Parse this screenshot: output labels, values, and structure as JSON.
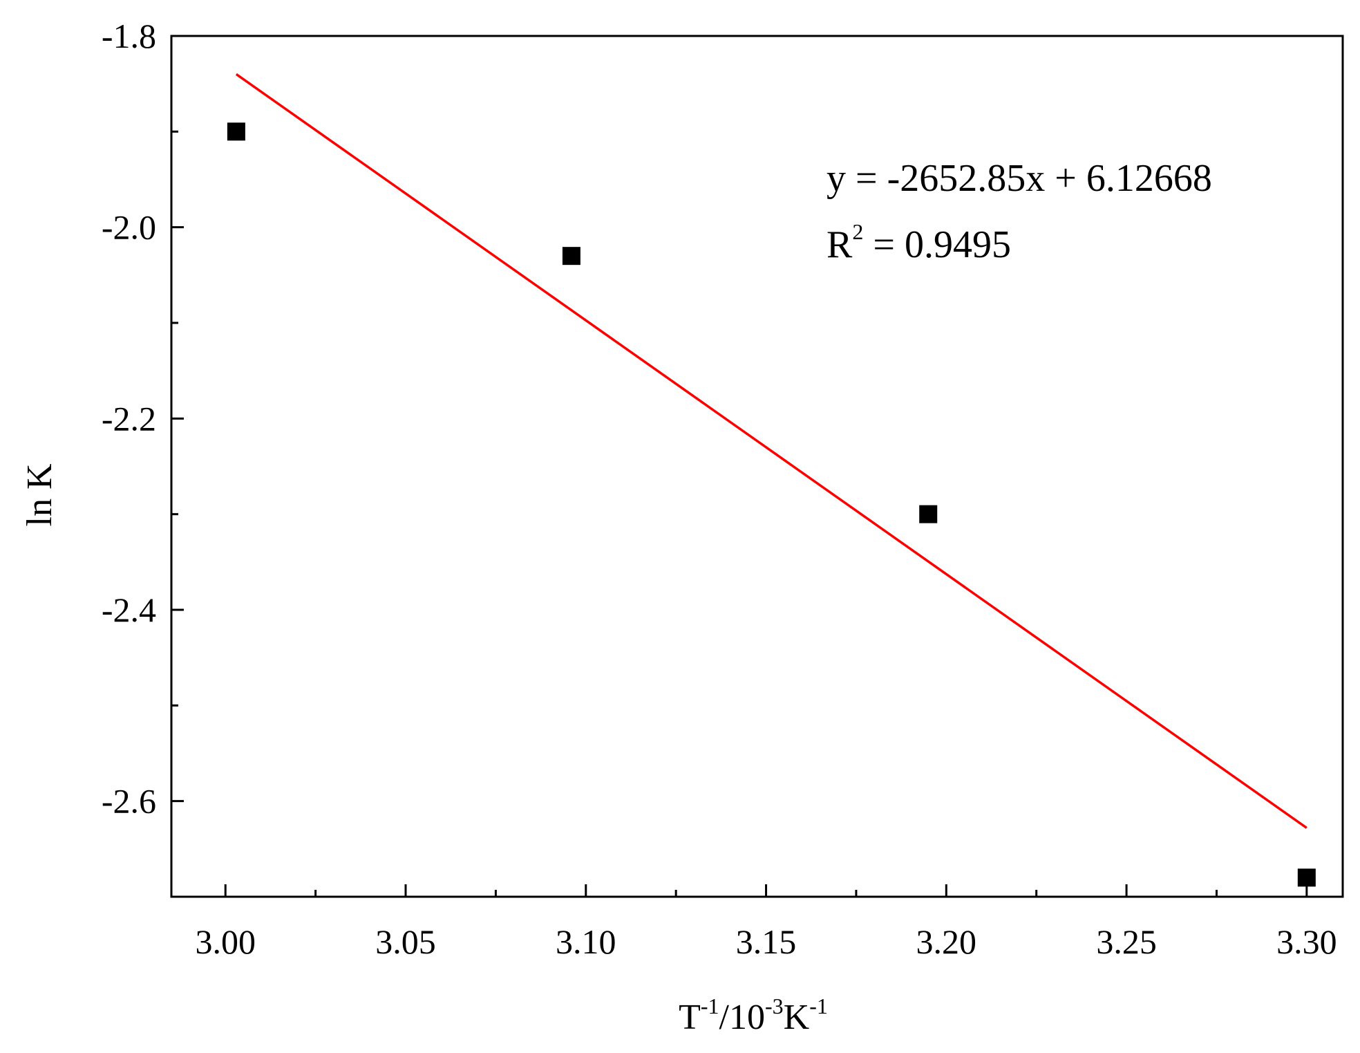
{
  "chart_data": {
    "type": "scatter",
    "title": "",
    "xlabel": {
      "base": "T",
      "exp1": "-1",
      "mid": "/10",
      "exp2": "-3",
      "unit": "K",
      "exp3": "-1"
    },
    "ylabel": "ln K",
    "xlim": [
      2.985,
      3.31
    ],
    "ylim": [
      -2.7,
      -1.8
    ],
    "x_ticks_major": [
      "3.00",
      "3.05",
      "3.10",
      "3.15",
      "3.20",
      "3.25",
      "3.30"
    ],
    "y_ticks_major": [
      "-1.8",
      "-2.0",
      "-2.2",
      "-2.4",
      "-2.6"
    ],
    "grid": false,
    "points": [
      {
        "x": 3.003,
        "y": -1.9
      },
      {
        "x": 3.096,
        "y": -2.03
      },
      {
        "x": 3.195,
        "y": -2.3
      },
      {
        "x": 3.3,
        "y": -2.68
      }
    ],
    "marker_color": "#000000",
    "fit_line": {
      "x": [
        3.003,
        3.3
      ],
      "y": [
        -1.84,
        -2.628
      ],
      "color": "#ff0000"
    },
    "annotation": {
      "equation": "y = -2652.85x + 6.12668",
      "r2_base": "R",
      "r2_exp": "2",
      "r2_rest": " = 0.9495"
    }
  }
}
